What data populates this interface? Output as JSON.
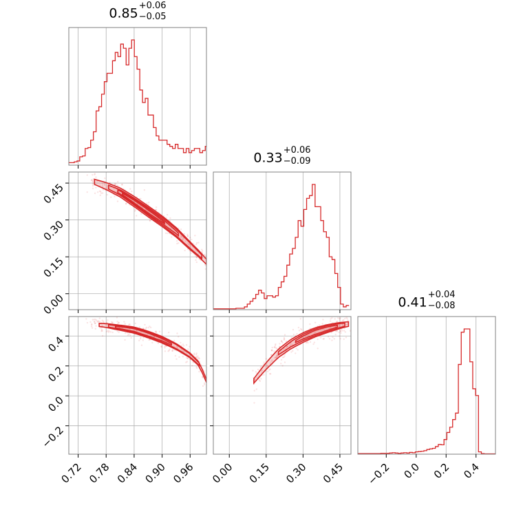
{
  "chart_data": {
    "type": "corner",
    "color": "#d62728",
    "grid": true,
    "variables": [
      {
        "range": [
          0.7,
          0.995
        ],
        "ticks": [
          0.72,
          0.78,
          0.84,
          0.9,
          0.96
        ],
        "tick_labels": [
          "0.72",
          "0.78",
          "0.84",
          "0.90",
          "0.96"
        ]
      },
      {
        "range": [
          -0.065,
          0.495
        ],
        "ticks": [
          0.0,
          0.15,
          0.3,
          0.45
        ],
        "tick_labels": [
          "0.00",
          "0.15",
          "0.30",
          "0.45"
        ]
      },
      {
        "range": [
          -0.39,
          0.53
        ],
        "ticks": [
          -0.2,
          0.0,
          0.2,
          0.4
        ],
        "tick_labels": [
          "−0.2",
          "0.0",
          "0.2",
          "0.4"
        ]
      }
    ],
    "titles": [
      {
        "median": "0.85",
        "plus": "+0.06",
        "minus": "−0.05"
      },
      {
        "median": "0.33",
        "plus": "+0.06",
        "minus": "−0.09"
      },
      {
        "median": "0.41",
        "plus": "+0.04",
        "minus": "−0.08"
      }
    ],
    "histograms": [
      {
        "var": 0,
        "edges_start": 0.7,
        "bin_width": 0.00585,
        "counts": [
          0.6,
          0.6,
          0.8,
          1.0,
          2.0,
          2.2,
          4.0,
          4.2,
          6.0,
          8.0,
          13.0,
          14.0,
          17.0,
          20.0,
          22.0,
          22.0,
          25.0,
          27.0,
          26.0,
          29.0,
          28.0,
          24.0,
          28.0,
          30.0,
          26.0,
          23.0,
          18.0,
          15.0,
          16.0,
          12.0,
          12.0,
          9.0,
          7.0,
          6.0,
          6.0,
          6.0,
          5.0,
          4.5,
          4.0,
          5.0,
          4.0,
          4.0,
          3.0,
          4.0,
          3.0,
          3.5,
          4.0,
          4.0,
          3.0,
          3.5,
          4.5,
          3.5,
          4.5,
          3.5,
          3.5,
          4.0,
          4.5,
          4.5,
          4.0,
          3.0
        ]
      },
      {
        "var": 1,
        "edges_start": -0.065,
        "bin_width": 0.0115,
        "counts": [
          0.3,
          0.3,
          0.3,
          0.3,
          0.3,
          0.3,
          0.3,
          0.3,
          0.5,
          0.5,
          0.5,
          1.0,
          2.0,
          3.0,
          4.0,
          5.5,
          7.0,
          6.0,
          4.0,
          5.0,
          5.0,
          4.5,
          5.0,
          8.0,
          10.0,
          12.0,
          16.0,
          20.0,
          22.0,
          26.0,
          32.0,
          30.0,
          36.0,
          40.0,
          41.0,
          45.0,
          37.0,
          37.0,
          32.0,
          28.0,
          26.0,
          19.0,
          18.0,
          13.0,
          8.0,
          2.0,
          1.0,
          1.5
        ]
      },
      {
        "var": 2,
        "edges_start": -0.39,
        "bin_width": 0.0192,
        "counts": [
          0.2,
          0.2,
          0.2,
          0.2,
          0.2,
          0.2,
          0.2,
          0.2,
          0.3,
          0.3,
          0.3,
          0.4,
          0.5,
          0.4,
          0.3,
          0.4,
          0.5,
          0.4,
          0.6,
          0.5,
          0.8,
          0.9,
          1.0,
          1.2,
          1.6,
          1.8,
          2.0,
          2.6,
          3.3,
          3.2,
          5.0,
          7.4,
          9.2,
          11.8,
          14.0,
          30.6,
          41.6,
          42.7,
          42.7,
          31.5,
          22.3,
          20.0,
          0.8,
          0.2,
          0.1,
          0.1,
          0.1,
          0.1
        ]
      }
    ],
    "scatter_panels": [
      {
        "xvar": 0,
        "yvar": 1,
        "ridge": [
          [
            0.745,
            0.462
          ],
          [
            0.78,
            0.438
          ],
          [
            0.81,
            0.412
          ],
          [
            0.84,
            0.375
          ],
          [
            0.87,
            0.335
          ],
          [
            0.9,
            0.295
          ],
          [
            0.93,
            0.25
          ],
          [
            0.96,
            0.195
          ],
          [
            0.98,
            0.16
          ],
          [
            0.995,
            0.13
          ]
        ],
        "spread": 0.02,
        "contour_levels": [
          {
            "half_width": 0.022,
            "range": [
              0.755,
              0.995
            ]
          },
          {
            "half_width": 0.016,
            "range": [
              0.785,
              0.985
            ]
          },
          {
            "half_width": 0.011,
            "range": [
              0.805,
              0.935
            ]
          },
          {
            "half_width": 0.006,
            "range": [
              0.815,
              0.905
            ]
          }
        ]
      },
      {
        "xvar": 0,
        "yvar": 2,
        "ridge": [
          [
            0.745,
            0.48
          ],
          [
            0.78,
            0.47
          ],
          [
            0.81,
            0.455
          ],
          [
            0.84,
            0.44
          ],
          [
            0.87,
            0.41
          ],
          [
            0.9,
            0.375
          ],
          [
            0.93,
            0.33
          ],
          [
            0.96,
            0.27
          ],
          [
            0.98,
            0.21
          ],
          [
            0.995,
            0.1
          ]
        ],
        "spread": 0.03,
        "contour_levels": [
          {
            "half_width": 0.022,
            "range": [
              0.765,
              0.995
            ]
          },
          {
            "half_width": 0.016,
            "range": [
              0.785,
              0.98
            ]
          },
          {
            "half_width": 0.01,
            "range": [
              0.8,
              0.92
            ]
          }
        ]
      },
      {
        "xvar": 1,
        "yvar": 2,
        "ridge": [
          [
            0.1,
            0.1
          ],
          [
            0.15,
            0.2
          ],
          [
            0.2,
            0.285
          ],
          [
            0.25,
            0.345
          ],
          [
            0.3,
            0.39
          ],
          [
            0.35,
            0.425
          ],
          [
            0.4,
            0.45
          ],
          [
            0.45,
            0.47
          ],
          [
            0.485,
            0.48
          ]
        ],
        "spread": 0.04,
        "contour_levels": [
          {
            "half_width": 0.032,
            "range": [
              0.1,
              0.485
            ]
          },
          {
            "half_width": 0.022,
            "range": [
              0.2,
              0.47
            ]
          },
          {
            "half_width": 0.013,
            "range": [
              0.27,
              0.44
            ]
          }
        ]
      }
    ]
  }
}
